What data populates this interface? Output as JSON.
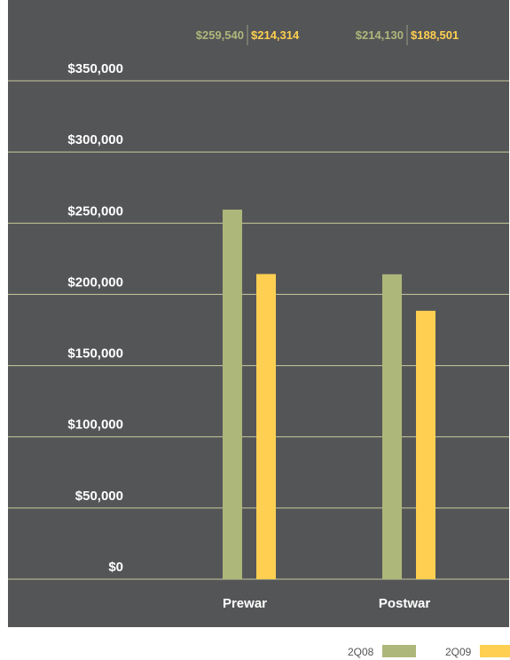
{
  "chart_data": {
    "type": "bar",
    "categories": [
      "Prewar",
      "Postwar"
    ],
    "series": [
      {
        "name": "2Q08",
        "values": [
          259540,
          214130
        ],
        "labels": [
          "$259,540",
          "$214,130"
        ],
        "color": "#aeb77a"
      },
      {
        "name": "2Q09",
        "values": [
          214314,
          188501
        ],
        "labels": [
          "$214,314",
          "$188,501"
        ],
        "color": "#fecf50"
      }
    ],
    "ylim": [
      0,
      350000
    ],
    "ticks": [
      0,
      50000,
      100000,
      150000,
      200000,
      250000,
      300000,
      350000
    ],
    "tick_labels": [
      "$0",
      "$50,000",
      "$100,000",
      "$150,000",
      "$200,000",
      "$250,000",
      "$300,000",
      "$350,000"
    ],
    "grid": true,
    "legend_position": "bottom-right",
    "background": "#545557",
    "grid_color": "#c9cc9e"
  }
}
